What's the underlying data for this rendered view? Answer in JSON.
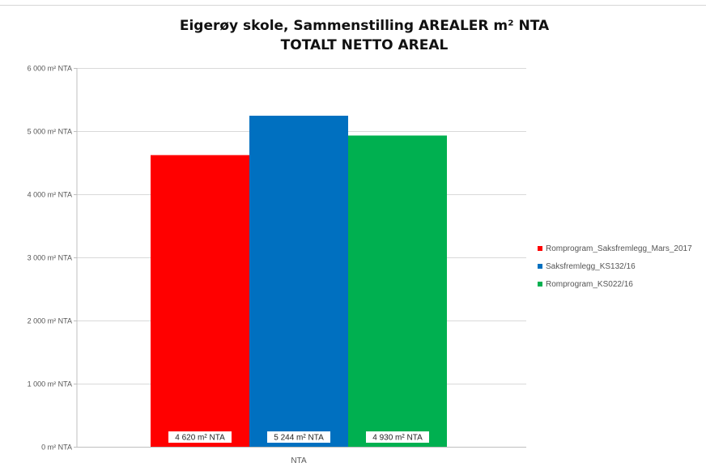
{
  "chart_data": {
    "type": "bar",
    "title": "Eigerøy skole, Sammenstilling AREALER m² NTA",
    "subtitle": "TOTALT NETTO AREAL",
    "categories": [
      "NTA"
    ],
    "ylim": [
      0,
      6000
    ],
    "yticks": [
      {
        "value": 0,
        "label": "0 m² NTA"
      },
      {
        "value": 1000,
        "label": "1 000 m² NTA"
      },
      {
        "value": 2000,
        "label": "2 000 m² NTA"
      },
      {
        "value": 3000,
        "label": "3 000 m² NTA"
      },
      {
        "value": 4000,
        "label": "4 000 m² NTA"
      },
      {
        "value": 5000,
        "label": "5 000 m² NTA"
      },
      {
        "value": 6000,
        "label": "6 000 m² NTA"
      }
    ],
    "grid": true,
    "legend_position": "right",
    "series": [
      {
        "name": "Romprogram_Saksfremlegg_Mars_2017",
        "values": [
          4620
        ],
        "label": "4 620 m² NTA",
        "color": "#ff0000"
      },
      {
        "name": "Saksfremlegg_KS132/16",
        "values": [
          5244
        ],
        "label": "5 244 m² NTA",
        "color": "#0070c0"
      },
      {
        "name": "Romprogram_KS022/16",
        "values": [
          4930
        ],
        "label": "4 930 m² NTA",
        "color": "#00b050"
      }
    ]
  }
}
